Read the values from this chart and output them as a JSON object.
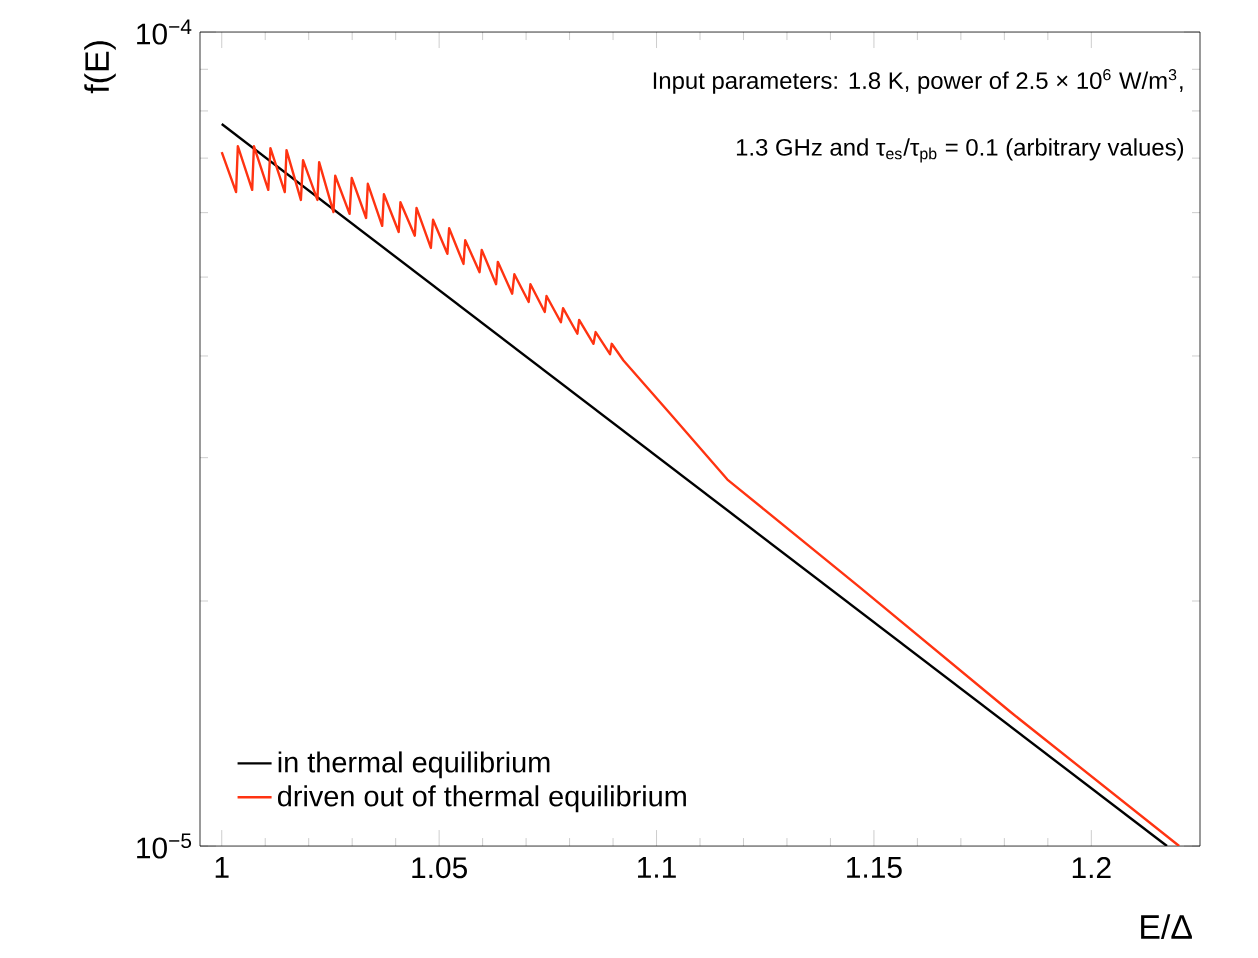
{
  "chart_data": {
    "type": "line",
    "xlabel": "E/Δ",
    "ylabel": "f(E)",
    "annotations": [
      "Input parameters: 1.8 K, power of 2.5 × 10$^{6}$ W/m$^{3}$,",
      "1.3 GHz and τ$_{es}$/τ$_{pb}$ = 0.1 (arbitrary values)"
    ],
    "log": "y",
    "legend": "bottom left",
    "marker": "none",
    "line_style": "solid",
    "xlim": [
      0.995,
      1.225
    ],
    "xticks": [
      1,
      1.05,
      1.1,
      1.15,
      1.2
    ],
    "ylim": [
      1e-05,
      0.0001
    ],
    "yticks": [
      {
        "value": 1e-05,
        "label": "10$^{−5}$"
      },
      {
        "value": 0.0001,
        "label": "10$^{−4}$"
      }
    ],
    "series": [
      {
        "name": "in thermal equilibrium",
        "color": "#000000",
        "x": [
          1.0,
          1.2174
        ],
        "values": [
          7.71e-05,
          1e-05
        ]
      },
      {
        "name": "driven out of thermal equilibrium",
        "color": "#ff3311",
        "x": [
          1.0,
          1.0033,
          1.0037,
          1.007,
          1.0074,
          1.0107,
          1.0112,
          1.0145,
          1.0149,
          1.0182,
          1.0187,
          1.022,
          1.0224,
          1.0257,
          1.0261,
          1.0294,
          1.0299,
          1.0332,
          1.0336,
          1.0369,
          1.0373,
          1.0407,
          1.0411,
          1.0444,
          1.0448,
          1.0481,
          1.0486,
          1.0519,
          1.0523,
          1.0556,
          1.056,
          1.0593,
          1.0598,
          1.0631,
          1.0635,
          1.0668,
          1.0673,
          1.0706,
          1.071,
          1.0743,
          1.0747,
          1.078,
          1.0785,
          1.0818,
          1.0822,
          1.0855,
          1.086,
          1.0893,
          1.0897,
          1.0924,
          1.1033,
          1.1163,
          1.1467,
          1.1815,
          1.2202
        ],
        "values": [
          7.12e-05,
          6.36e-05,
          7.24e-05,
          6.4e-05,
          7.24e-05,
          6.4e-05,
          7.2e-05,
          6.36e-05,
          7.16e-05,
          6.22e-05,
          6.96e-05,
          6.22e-05,
          6.92e-05,
          6.01e-05,
          6.66e-05,
          5.98e-05,
          6.62e-05,
          5.91e-05,
          6.51e-05,
          5.78e-05,
          6.32e-05,
          5.68e-05,
          6.18e-05,
          5.62e-05,
          6.08e-05,
          5.43e-05,
          5.88e-05,
          5.34e-05,
          5.74e-05,
          5.19e-05,
          5.55e-05,
          5.07e-05,
          5.4e-05,
          4.9e-05,
          5.22e-05,
          4.77e-05,
          5.04e-05,
          4.66e-05,
          4.9e-05,
          4.53e-05,
          4.74e-05,
          4.4e-05,
          4.58e-05,
          4.26e-05,
          4.43e-05,
          4.14e-05,
          4.28e-05,
          4.02e-05,
          4.14e-05,
          3.95e-05,
          3.39e-05,
          2.82e-05,
          2.08e-05,
          1.46e-05,
          1e-05
        ]
      }
    ]
  }
}
